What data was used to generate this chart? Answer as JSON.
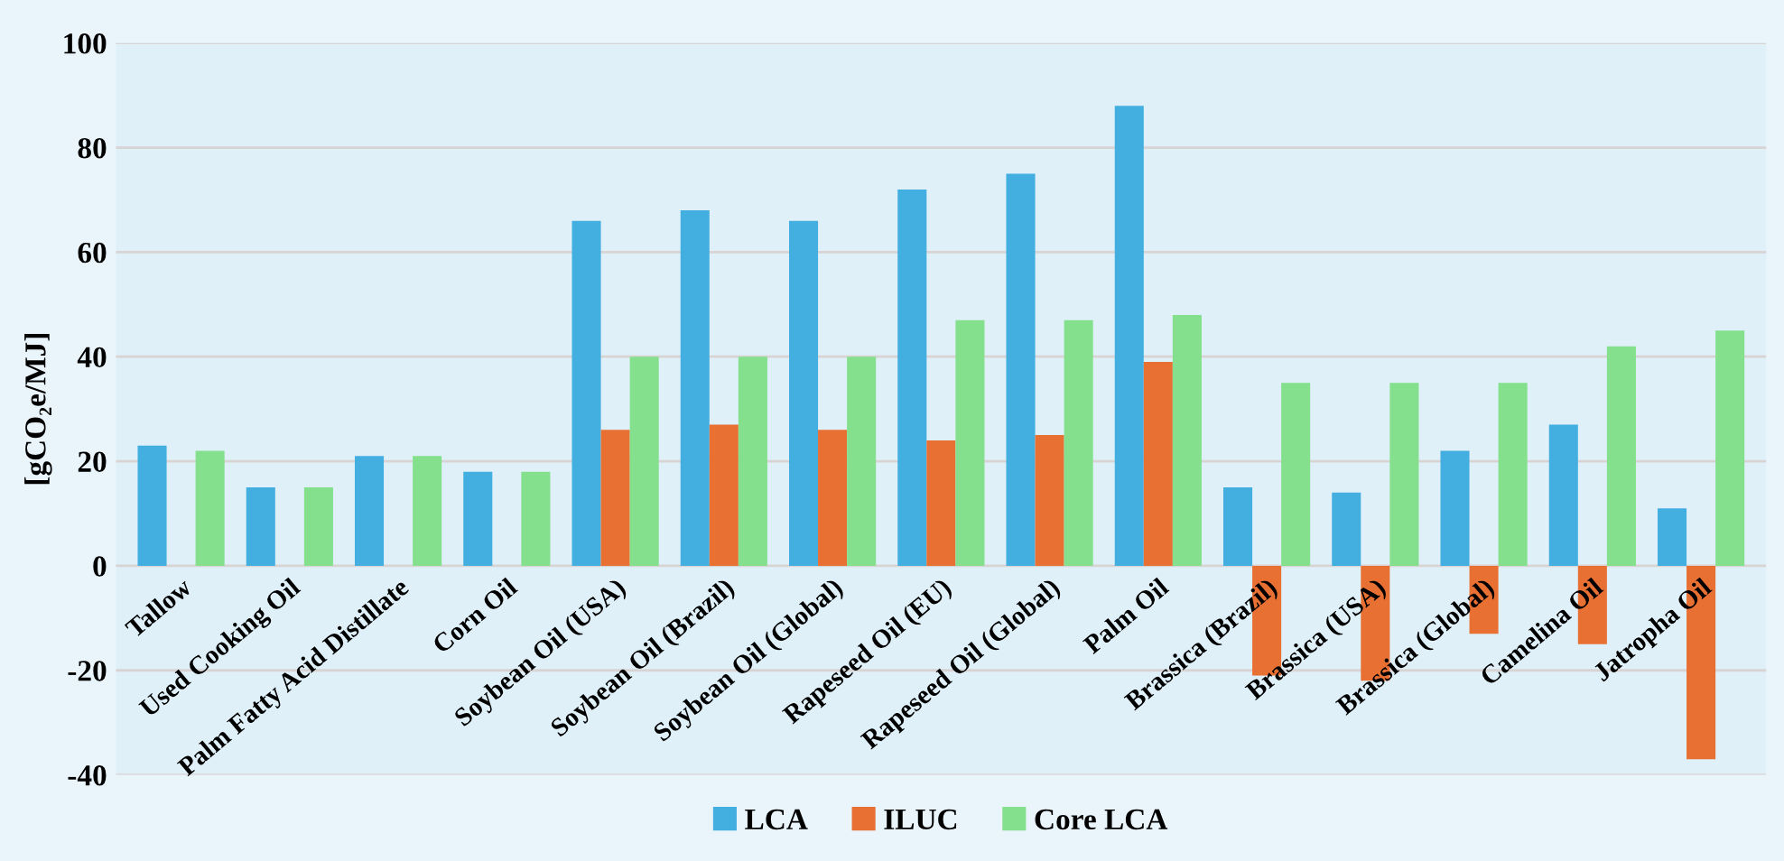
{
  "chart_data": {
    "type": "bar",
    "ylabel": "[gCO₂e/MJ]",
    "categories": [
      "Tallow",
      "Used Cooking Oil",
      "Palm Fatty Acid Distillate",
      "Corn Oil",
      "Soybean Oil (USA)",
      "Soybean Oil (Brazil)",
      "Soybean Oil (Global)",
      "Rapeseed Oil (EU)",
      "Rapeseed Oil (Global)",
      "Palm Oil",
      "Brassica (Brazil)",
      "Brassica (USA)",
      "Brassica (Global)",
      "Camelina Oil",
      "Jatropha Oil"
    ],
    "series": [
      {
        "name": "LCA",
        "color": "#43aee0",
        "values": [
          23,
          15,
          21,
          18,
          66,
          68,
          66,
          72,
          75,
          88,
          15,
          14,
          22,
          27,
          11
        ]
      },
      {
        "name": "ILUC",
        "color": "#e87033",
        "values": [
          0,
          0,
          0,
          0,
          26,
          27,
          26,
          24,
          25,
          39,
          -21,
          -22,
          -13,
          -15,
          -37
        ]
      },
      {
        "name": "Core LCA",
        "color": "#84e08c",
        "values": [
          22,
          15,
          21,
          18,
          40,
          40,
          40,
          47,
          47,
          48,
          35,
          35,
          35,
          42,
          45
        ]
      }
    ],
    "ylim": [
      -40,
      100
    ],
    "yticks": [
      -40,
      -20,
      0,
      20,
      40,
      60,
      80,
      100
    ],
    "grid": "y",
    "legend": "bottom"
  }
}
